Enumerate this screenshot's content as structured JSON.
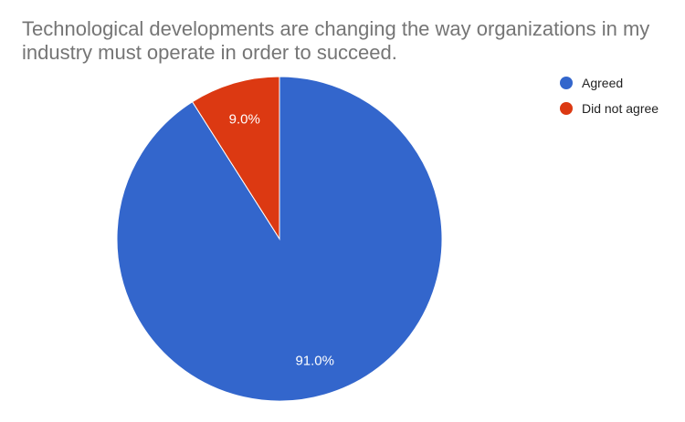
{
  "chart_data": {
    "type": "pie",
    "title": "Technological developments are changing the way organizations in my industry must operate in order to succeed.",
    "categories": [
      "Agreed",
      "Did not agree"
    ],
    "values": [
      91.0,
      9.0
    ],
    "data_labels": [
      "91.0%",
      "9.0%"
    ],
    "colors": [
      "#3366cc",
      "#dc3912"
    ],
    "legend_position": "right"
  }
}
